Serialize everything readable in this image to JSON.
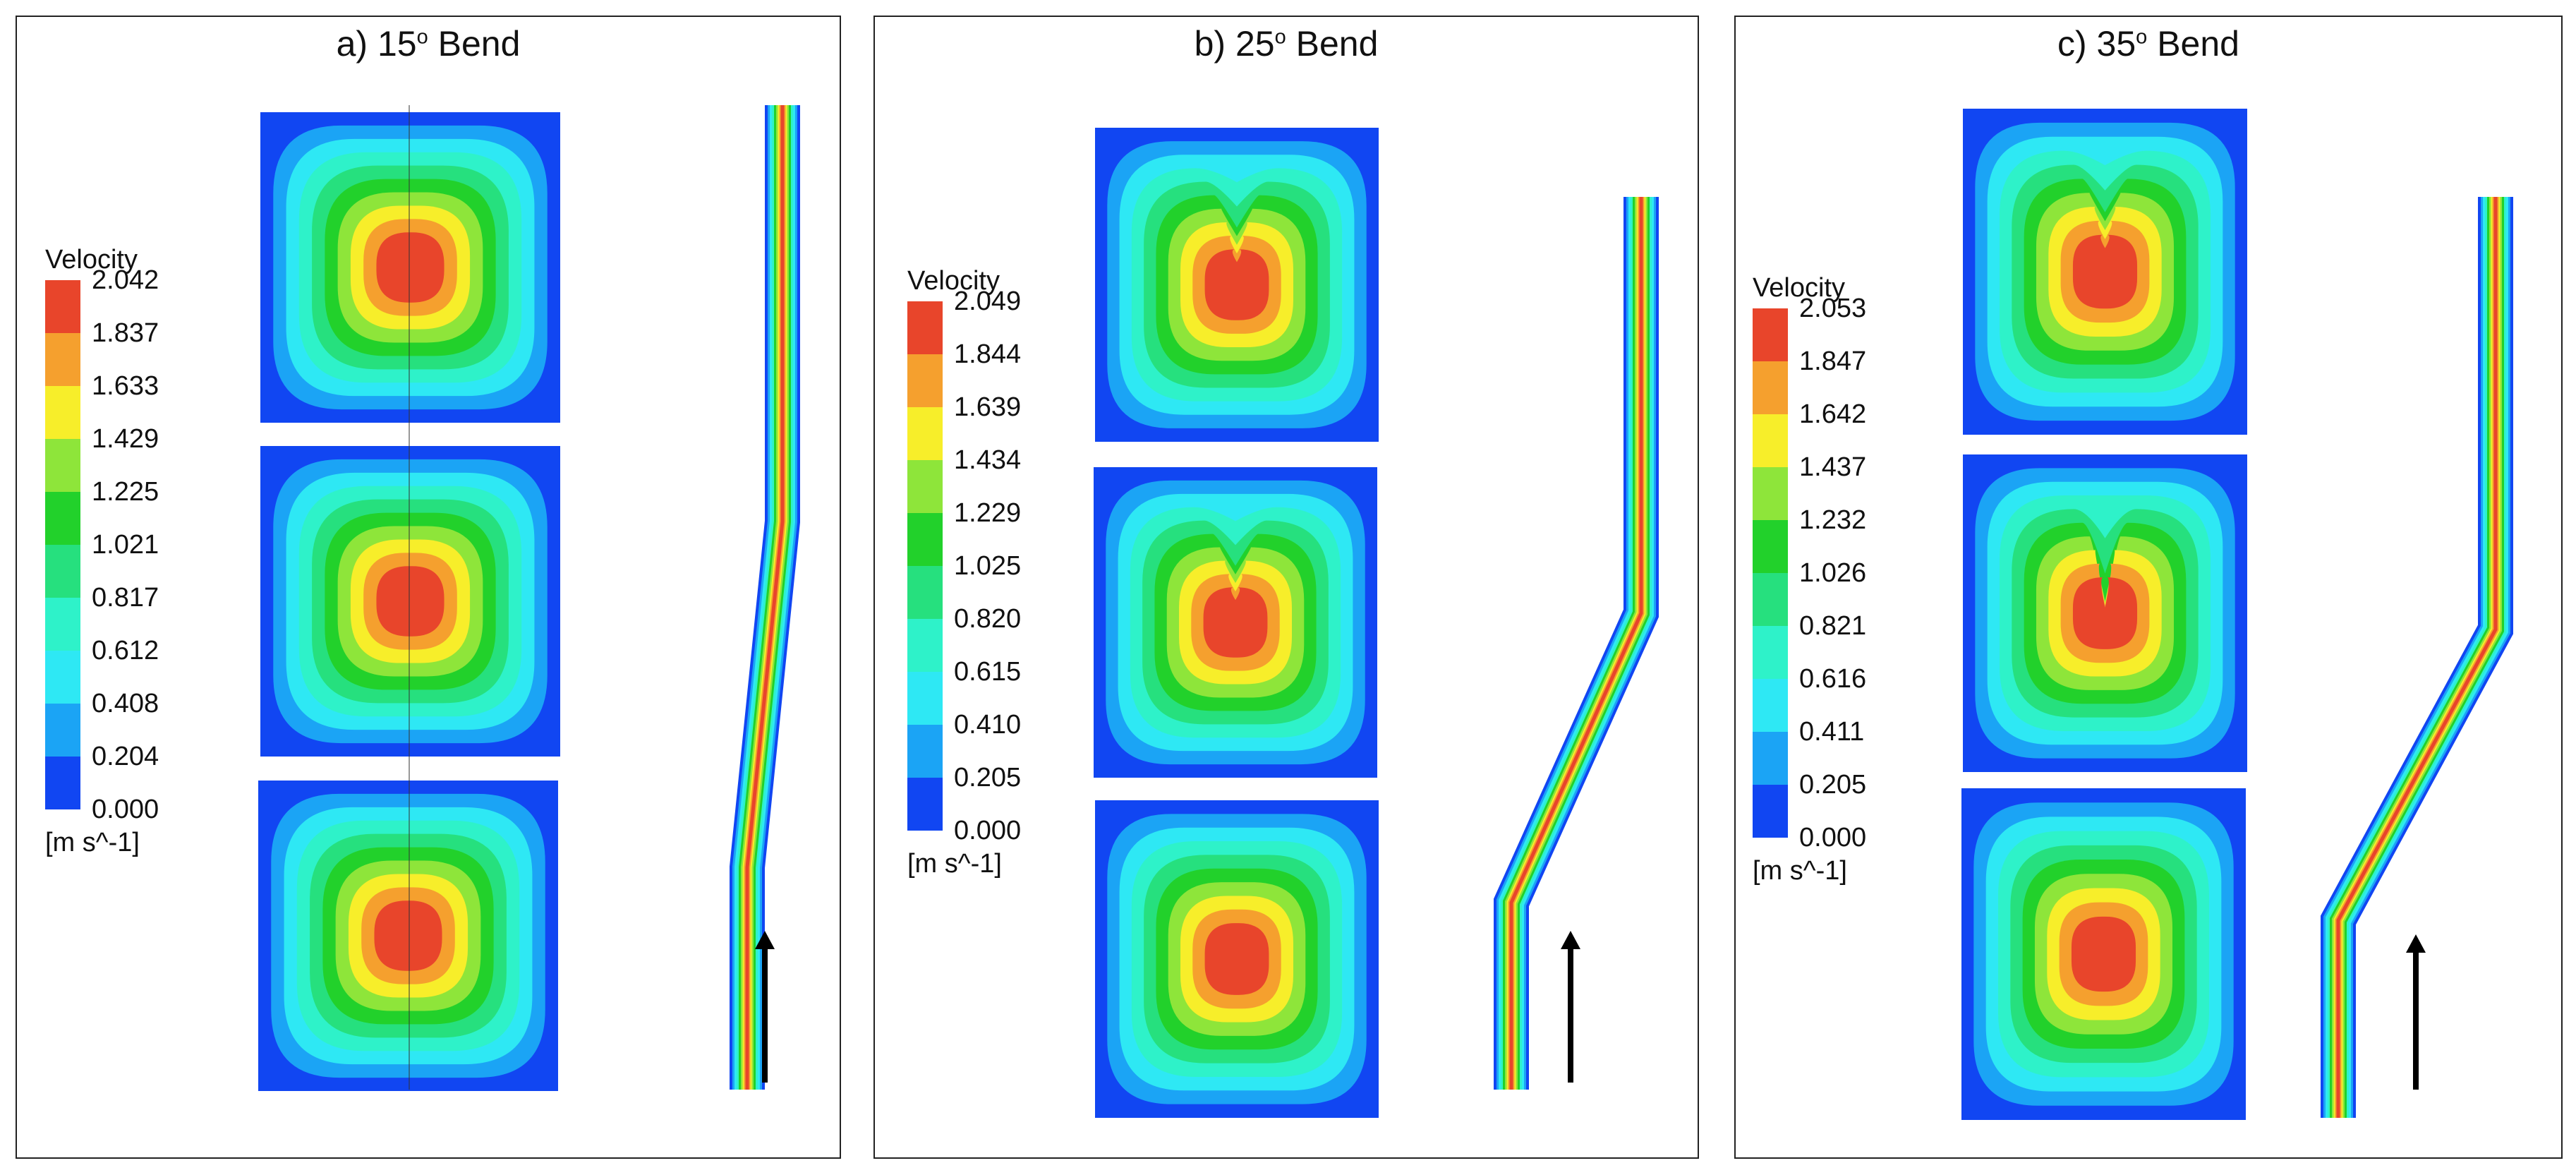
{
  "figure": {
    "panels": [
      {
        "title_prefix": "a) 15",
        "title_degree": "o",
        "title_suffix": " Bend",
        "legend": {
          "title": "Velocity",
          "ticks": [
            "2.042",
            "1.837",
            "1.633",
            "1.429",
            "1.225",
            "1.021",
            "0.817",
            "0.612",
            "0.408",
            "0.204",
            "0.000"
          ],
          "unit": "[m s^-1]"
        }
      },
      {
        "title_prefix": "b) 25",
        "title_degree": "o",
        "title_suffix": " Bend",
        "legend": {
          "title": "Velocity",
          "ticks": [
            "2.049",
            "1.844",
            "1.639",
            "1.434",
            "1.229",
            "1.025",
            "0.820",
            "0.615",
            "0.410",
            "0.205",
            "0.000"
          ],
          "unit": "[m s^-1]"
        }
      },
      {
        "title_prefix": "c) 35",
        "title_degree": "o",
        "title_suffix": " Bend",
        "legend": {
          "title": "Velocity",
          "ticks": [
            "2.053",
            "1.847",
            "1.642",
            "1.437",
            "1.232",
            "1.026",
            "0.821",
            "0.616",
            "0.411",
            "0.205",
            "0.000"
          ],
          "unit": "[m s^-1]"
        }
      }
    ],
    "colormap": [
      "#e8452b",
      "#f5a02e",
      "#f7ee2a",
      "#8ee53a",
      "#22d12b",
      "#26e07e",
      "#2ef2c9",
      "#2ee8f4",
      "#1ba4f5",
      "#1146f2"
    ]
  }
}
